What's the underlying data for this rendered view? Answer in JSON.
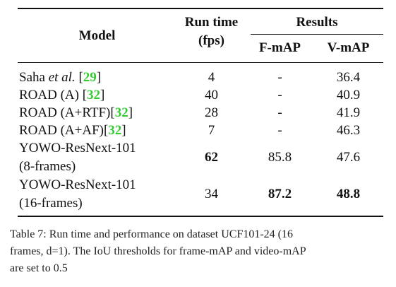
{
  "table": {
    "header": {
      "model": "Model",
      "runtime_line1": "Run time",
      "runtime_line2": "(fps)",
      "results": "Results",
      "fmap": "F-mAP",
      "vmap": "V-mAP"
    },
    "rows": [
      {
        "name_pre": "Saha ",
        "name_italic": "et al.",
        "name_mid": " [",
        "cite": "29",
        "name_post": "]",
        "fps": "4",
        "fmap": "-",
        "vmap": "36.4"
      },
      {
        "name_pre": "ROAD (A) [",
        "cite": "32",
        "name_post": "]",
        "fps": "40",
        "fmap": "-",
        "vmap": "40.9"
      },
      {
        "name_pre": "ROAD (A+RTF)[",
        "cite": "32",
        "name_post": "]",
        "fps": "28",
        "fmap": "-",
        "vmap": "41.9"
      },
      {
        "name_pre": "ROAD (A+AF)[",
        "cite": "32",
        "name_post": "]",
        "fps": "7",
        "fmap": "-",
        "vmap": "46.3"
      },
      {
        "name_line1": "YOWO-ResNext-101",
        "name_line2": "(8-frames)",
        "fps": "62",
        "fmap": "85.8",
        "vmap": "47.6",
        "bold": [
          "fps"
        ]
      },
      {
        "name_line1": "YOWO-ResNext-101",
        "name_line2": "(16-frames)",
        "fps": "34",
        "fmap": "87.2",
        "vmap": "48.8",
        "bold": [
          "fmap",
          "vmap"
        ]
      }
    ]
  },
  "caption": {
    "line1": "Table 7: Run time and performance on dataset UCF101-24 (16",
    "line2": "frames, d=1). The IoU thresholds for frame-mAP and video-mAP",
    "line3": "are set to 0.5"
  },
  "colors": {
    "citation": "#33cc33",
    "text": "#111111"
  }
}
